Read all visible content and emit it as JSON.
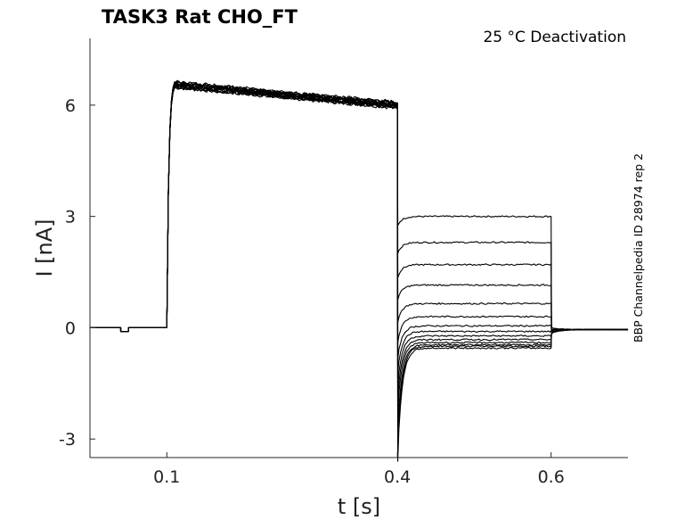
{
  "chart_data": {
    "type": "line",
    "title": "TASK3  Rat  CHO_FT",
    "annotation": "25 °C  Deactivation",
    "side_label": "BBP Channelpedia ID 28974 rep 2",
    "xlabel": "t [s]",
    "ylabel": "I [nA]",
    "xlim": [
      0.0,
      0.7
    ],
    "ylim": [
      -3.5,
      7.8
    ],
    "xticks": [
      0.1,
      0.4,
      0.6
    ],
    "xtick_labels": [
      "0.1",
      "0.4",
      "0.6"
    ],
    "yticks": [
      -3,
      0,
      3,
      6
    ],
    "ytick_labels": [
      "-3",
      "0",
      "3",
      "6"
    ],
    "grid": false,
    "legend": "none",
    "protocol": {
      "baseline_step": {
        "t_start": 0.04,
        "t_end": 0.05,
        "value": -0.1
      },
      "activation": {
        "t_start": 0.1,
        "t_end": 0.4,
        "peak": 6.55,
        "peak_t": 0.11,
        "end_value": 6.0
      },
      "deactivation": {
        "t_start": 0.4,
        "t_end": 0.6
      },
      "tail": {
        "t_start": 0.6,
        "t_end": 0.7,
        "value": -0.05
      }
    },
    "series": [
      {
        "step_level": 3.0,
        "transient": 0.25,
        "tail_offset": 0.05
      },
      {
        "step_level": 2.3,
        "transient": 0.3,
        "tail_offset": 0.05
      },
      {
        "step_level": 1.7,
        "transient": 0.35,
        "tail_offset": 0.0
      },
      {
        "step_level": 1.15,
        "transient": 0.4,
        "tail_offset": 0.0
      },
      {
        "step_level": 0.65,
        "transient": 0.5,
        "tail_offset": -0.05
      },
      {
        "step_level": 0.3,
        "transient": 0.7,
        "tail_offset": -0.05
      },
      {
        "step_level": 0.05,
        "transient": 0.9,
        "tail_offset": -0.05
      },
      {
        "step_level": -0.1,
        "transient": 1.1,
        "tail_offset": -0.1
      },
      {
        "step_level": -0.22,
        "transient": 1.35,
        "tail_offset": -0.1
      },
      {
        "step_level": -0.32,
        "transient": 1.6,
        "tail_offset": -0.1
      },
      {
        "step_level": -0.4,
        "transient": 1.9,
        "tail_offset": -0.1
      },
      {
        "step_level": -0.46,
        "transient": 2.3,
        "tail_offset": -0.1
      },
      {
        "step_level": -0.5,
        "transient": 2.7,
        "tail_offset": -0.1
      },
      {
        "step_level": -0.55,
        "transient": 3.05,
        "tail_offset": -0.1
      }
    ]
  }
}
